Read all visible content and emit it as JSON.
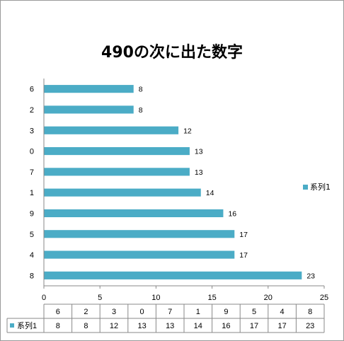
{
  "chart_data": {
    "type": "bar",
    "orientation": "horizontal",
    "title": "490の次に出た数字",
    "categories": [
      "8",
      "4",
      "5",
      "9",
      "1",
      "7",
      "0",
      "3",
      "2",
      "6"
    ],
    "series": [
      {
        "name": "系列1",
        "values": [
          23,
          17,
          17,
          16,
          14,
          13,
          13,
          12,
          8,
          8
        ],
        "color": "#4bacc6"
      }
    ],
    "xlim": [
      0,
      25
    ],
    "xticks": [
      0,
      5,
      10,
      15,
      20,
      25
    ],
    "grid": false,
    "legend_position": "right",
    "data_labels": true,
    "data_table": true
  }
}
